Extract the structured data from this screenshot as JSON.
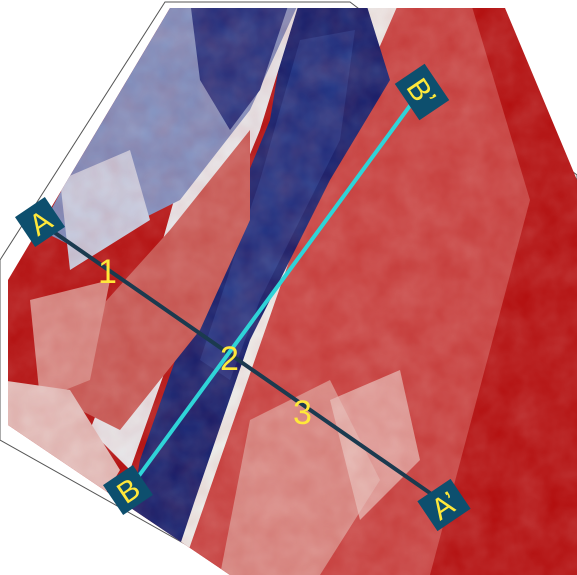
{
  "map": {
    "profiles": [
      {
        "start_label": "A",
        "end_label": "A’",
        "color": "#1b3a4f"
      },
      {
        "start_label": "B",
        "end_label": "B’",
        "color": "#2fd4d8"
      }
    ],
    "points": [
      {
        "label": "1"
      },
      {
        "label": "2"
      },
      {
        "label": "3"
      }
    ],
    "colors": {
      "label_box": "#0d4f6e",
      "label_text": "#ffe83a",
      "low": "#0b1c6e",
      "mid": "#f1f4f2",
      "high": "#b01010"
    }
  }
}
